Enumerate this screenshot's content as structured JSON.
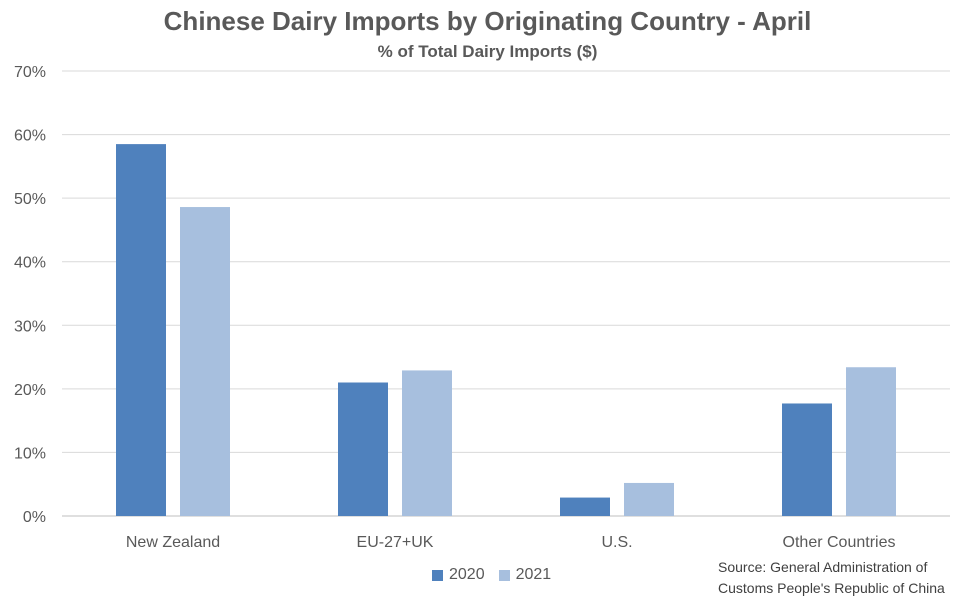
{
  "title": "Chinese Dairy Imports by Originating Country - April",
  "subtitle": "% of Total Dairy Imports ($)",
  "source": [
    "Source: General Administration of",
    "Customs People's Republic of China"
  ],
  "chart_data": {
    "type": "bar",
    "title": "Chinese Dairy Imports by Originating Country - April",
    "subtitle": "% of Total Dairy Imports ($)",
    "categories": [
      "New Zealand",
      "EU-27+UK",
      "U.S.",
      "Other Countries"
    ],
    "series": [
      {
        "name": "2020",
        "values": [
          58.5,
          21.0,
          2.9,
          17.7
        ],
        "color": "#4f81bd"
      },
      {
        "name": "2021",
        "values": [
          48.6,
          22.9,
          5.2,
          23.4
        ],
        "color": "#a7bfde"
      }
    ],
    "ylim": [
      0,
      70
    ],
    "yticks": [
      "0%",
      "10%",
      "20%",
      "30%",
      "40%",
      "50%",
      "60%",
      "70%"
    ],
    "grid": true,
    "legend": "bottom"
  }
}
